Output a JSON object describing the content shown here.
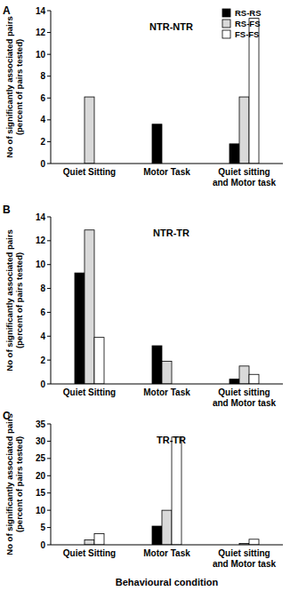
{
  "chart_data": [
    {
      "type": "bar",
      "title": "NTR-NTR",
      "annotations": [
        "A"
      ],
      "ylabel": [
        "No of significantly associated pairs",
        "(percent of pairs tested)"
      ],
      "categories": [
        "Quiet Sitting",
        "Motor Task",
        "Quiet sitting and Motor task"
      ],
      "series": [
        {
          "name": "RS-RS",
          "color": "#000000",
          "values": [
            0,
            3.6,
            1.8
          ]
        },
        {
          "name": "RS-FS",
          "color": "#d9d9d9",
          "values": [
            6.1,
            0,
            6.1
          ]
        },
        {
          "name": "FS-FS",
          "color": "#ffffff",
          "values": [
            0,
            0,
            13.3
          ]
        }
      ],
      "ylim": [
        0,
        14
      ],
      "yticks": [
        0,
        2,
        4,
        6,
        8,
        10,
        12,
        14
      ],
      "legend": "top-right"
    },
    {
      "type": "bar",
      "title": "NTR-TR",
      "annotations": [
        "B"
      ],
      "ylabel": [
        "No of significantly associated pairs",
        "(percent of pairs tested)"
      ],
      "categories": [
        "Quiet Sitting",
        "Motor Task",
        "Quiet sitting and Motor task"
      ],
      "series": [
        {
          "name": "RS-RS",
          "color": "#000000",
          "values": [
            9.3,
            3.2,
            0.4
          ]
        },
        {
          "name": "RS-FS",
          "color": "#d9d9d9",
          "values": [
            12.9,
            1.9,
            1.5
          ]
        },
        {
          "name": "FS-FS",
          "color": "#ffffff",
          "values": [
            3.9,
            0,
            0.8
          ]
        }
      ],
      "ylim": [
        0,
        14
      ],
      "yticks": [
        0,
        2,
        4,
        6,
        8,
        10,
        12,
        14
      ]
    },
    {
      "type": "bar",
      "title": "TR-TR",
      "annotations": [
        "C"
      ],
      "ylabel": [
        "No of significantly associated pairs",
        "(percent of pairs tested)"
      ],
      "xlabel": "Behavioural condition",
      "categories": [
        "Quiet Sitting",
        "Motor Task",
        "Quiet sitting and Motor task"
      ],
      "series": [
        {
          "name": "RS-RS",
          "color": "#000000",
          "values": [
            0,
            5.4,
            0
          ]
        },
        {
          "name": "RS-FS",
          "color": "#d9d9d9",
          "values": [
            1.4,
            10,
            0.4
          ]
        },
        {
          "name": "FS-FS",
          "color": "#ffffff",
          "values": [
            3.2,
            31.2,
            1.6
          ]
        }
      ],
      "ylim": [
        0,
        35
      ],
      "yticks": [
        0,
        5,
        10,
        15,
        20,
        25,
        30,
        35
      ]
    }
  ]
}
